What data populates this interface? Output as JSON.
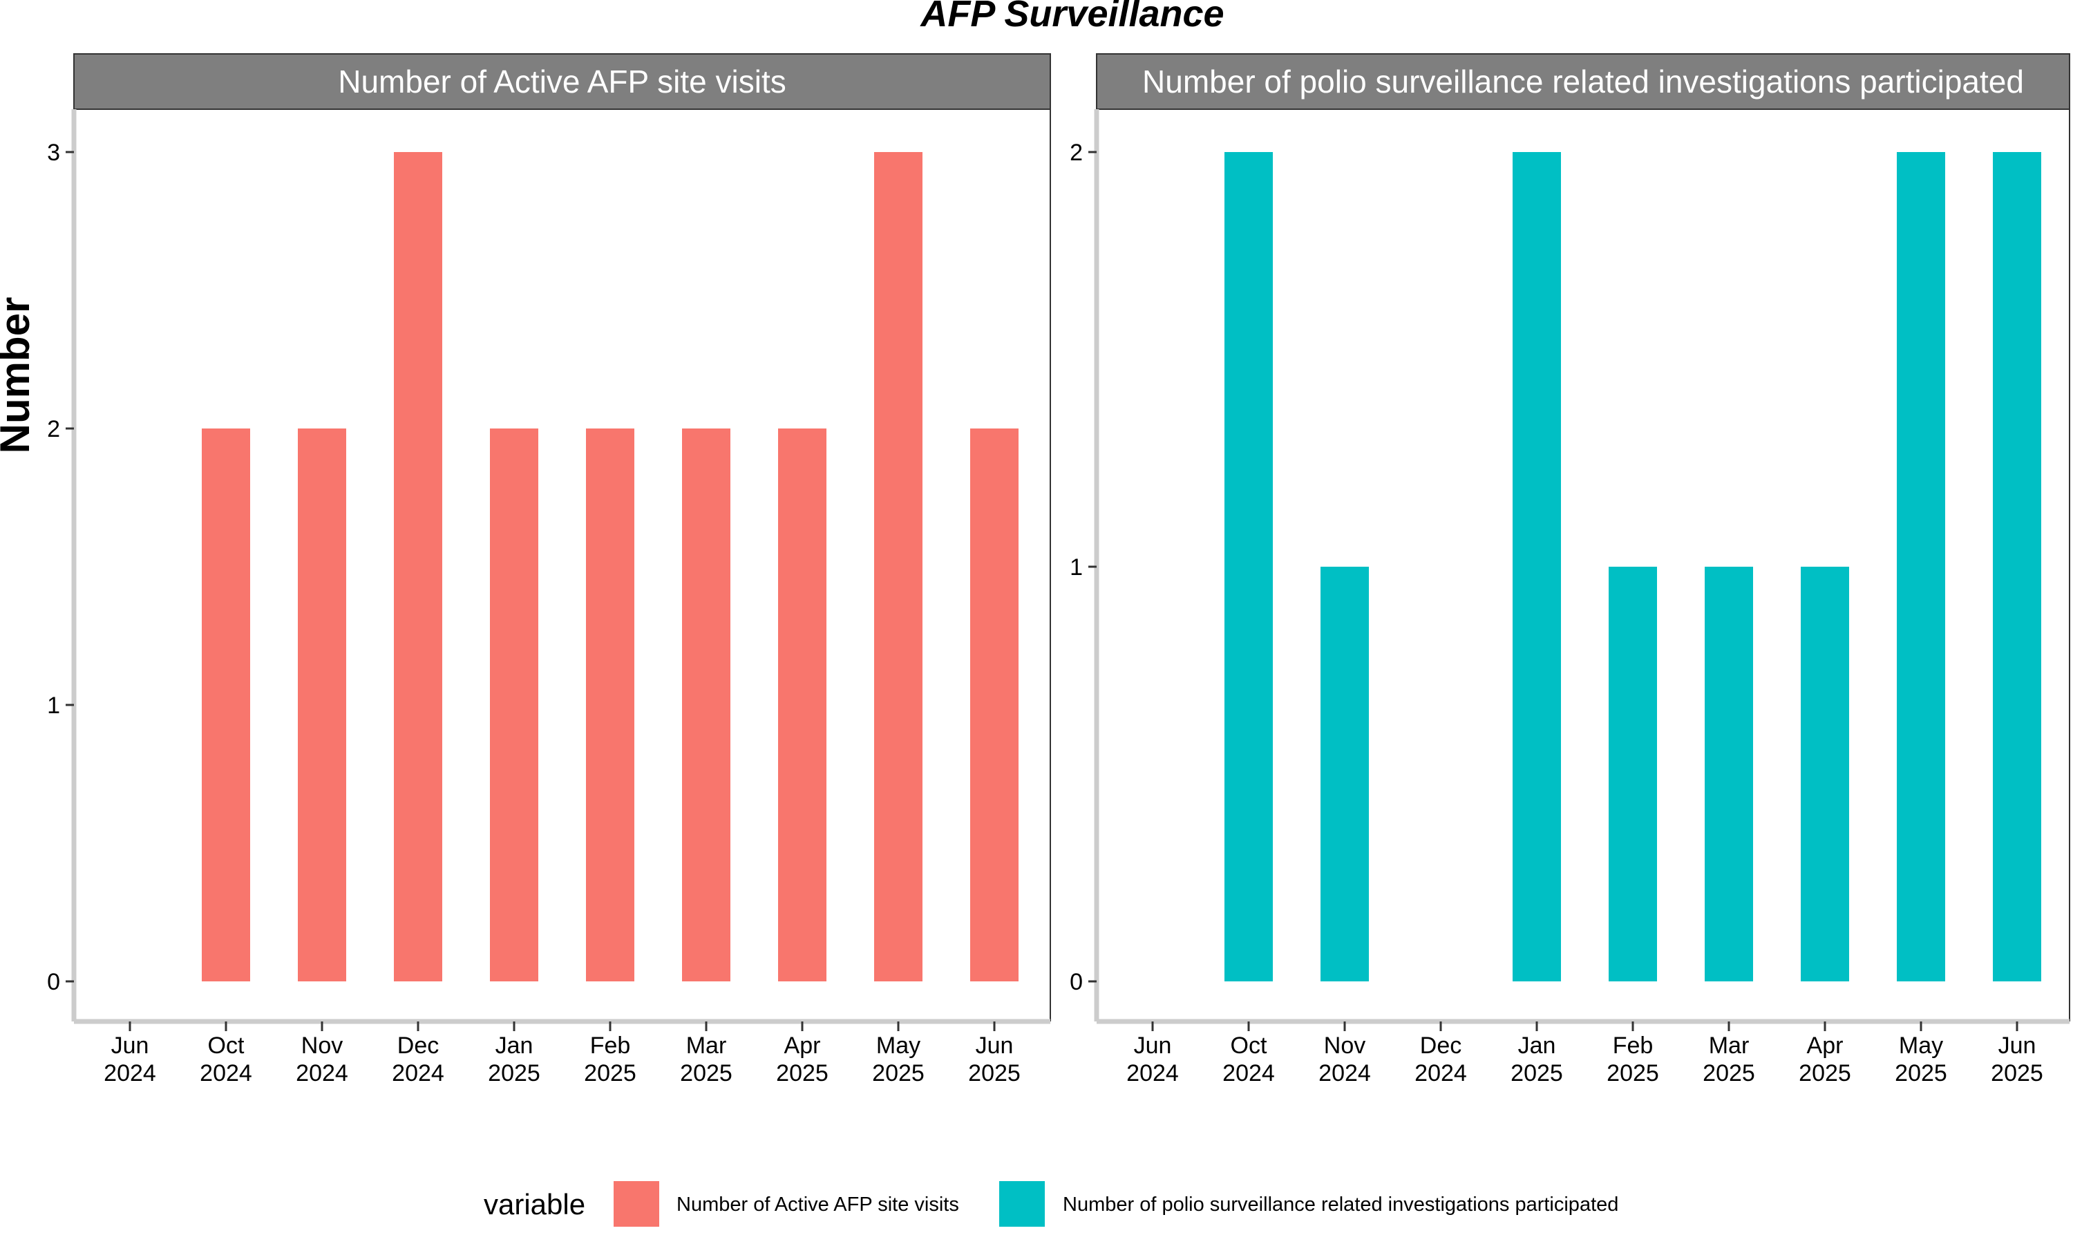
{
  "chart_data": {
    "type": "bar",
    "title": "AFP Surveillance",
    "ylabel": "Number",
    "xlabel": "",
    "categories": [
      "Jun\n2024",
      "Oct\n2024",
      "Nov\n2024",
      "Dec\n2024",
      "Jan\n2025",
      "Feb\n2025",
      "Mar\n2025",
      "Apr\n2025",
      "May\n2025",
      "Jun\n2025"
    ],
    "legend": {
      "title": "variable",
      "position": "bottom"
    },
    "grid": false,
    "panels": [
      {
        "strip_label": "Number of Active AFP site visits",
        "series_name": "Number of Active AFP site visits",
        "color": "#F8766D",
        "values": [
          null,
          2,
          2,
          3,
          2,
          2,
          2,
          2,
          3,
          2
        ],
        "ylim": [
          0,
          3
        ],
        "yticks": [
          0,
          1,
          2,
          3
        ]
      },
      {
        "strip_label": "Number of polio surveillance related investigations participated",
        "series_name": "Number of polio surveillance related investigations participated",
        "color": "#00BFC4",
        "values": [
          null,
          2,
          1,
          null,
          2,
          1,
          1,
          1,
          2,
          2
        ],
        "ylim": [
          0,
          2
        ],
        "yticks": [
          0,
          1,
          2
        ]
      }
    ]
  },
  "colors": {
    "strip_bg": "#7f7f7f",
    "axis_line": "#cccccc"
  }
}
